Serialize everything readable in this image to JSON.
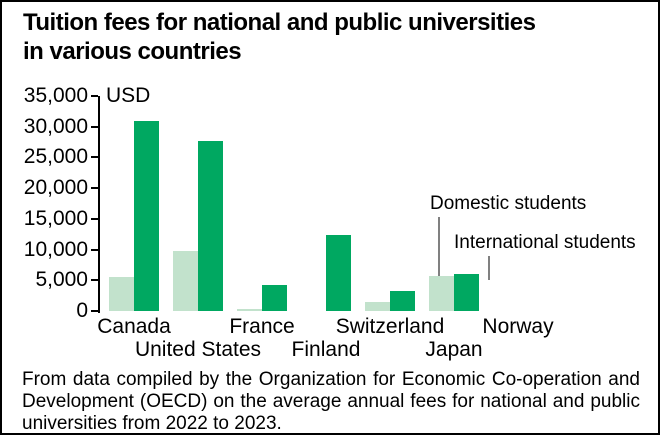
{
  "title": {
    "lines": [
      "Tuition fees for national and public universities",
      "in various countries"
    ]
  },
  "chart_data": {
    "type": "bar",
    "title": "Tuition fees for national and public universities in various countries",
    "unit_label": "USD",
    "categories": [
      "Canada",
      "United States",
      "France",
      "Finland",
      "Switzerland",
      "Japan",
      "Norway"
    ],
    "series": [
      {
        "name": "Domestic students",
        "color": "#C2E2CC",
        "values": [
          5500,
          9700,
          250,
          0,
          1400,
          5700,
          0
        ]
      },
      {
        "name": "International students",
        "color": "#00A861",
        "values": [
          31000,
          27700,
          4200,
          12400,
          3200,
          6000,
          0
        ]
      }
    ],
    "ylim": [
      0,
      35000
    ],
    "ytick_values": [
      35000,
      30000,
      25000,
      20000,
      15000,
      10000,
      5000,
      0
    ],
    "ytick_labels": [
      "35,000",
      "30,000",
      "25,000",
      "20,000",
      "15,000",
      "10,000",
      "5,000",
      "0"
    ],
    "grid": false,
    "legend_position": "annotations pointing to Japan bars"
  },
  "annotations": {
    "domestic_label": "Domestic students",
    "international_label": "International students"
  },
  "source_note": "From data compiled by the Organization for Economic Co-operation and Development (OECD) on the average annual fees for national and public universities from 2022 to 2023.",
  "colors": {
    "domestic": "#C2E2CC",
    "international": "#00A861",
    "text": "#000000",
    "background": "#FFFFFF",
    "leader_line": "#808080",
    "border": "#000000"
  }
}
